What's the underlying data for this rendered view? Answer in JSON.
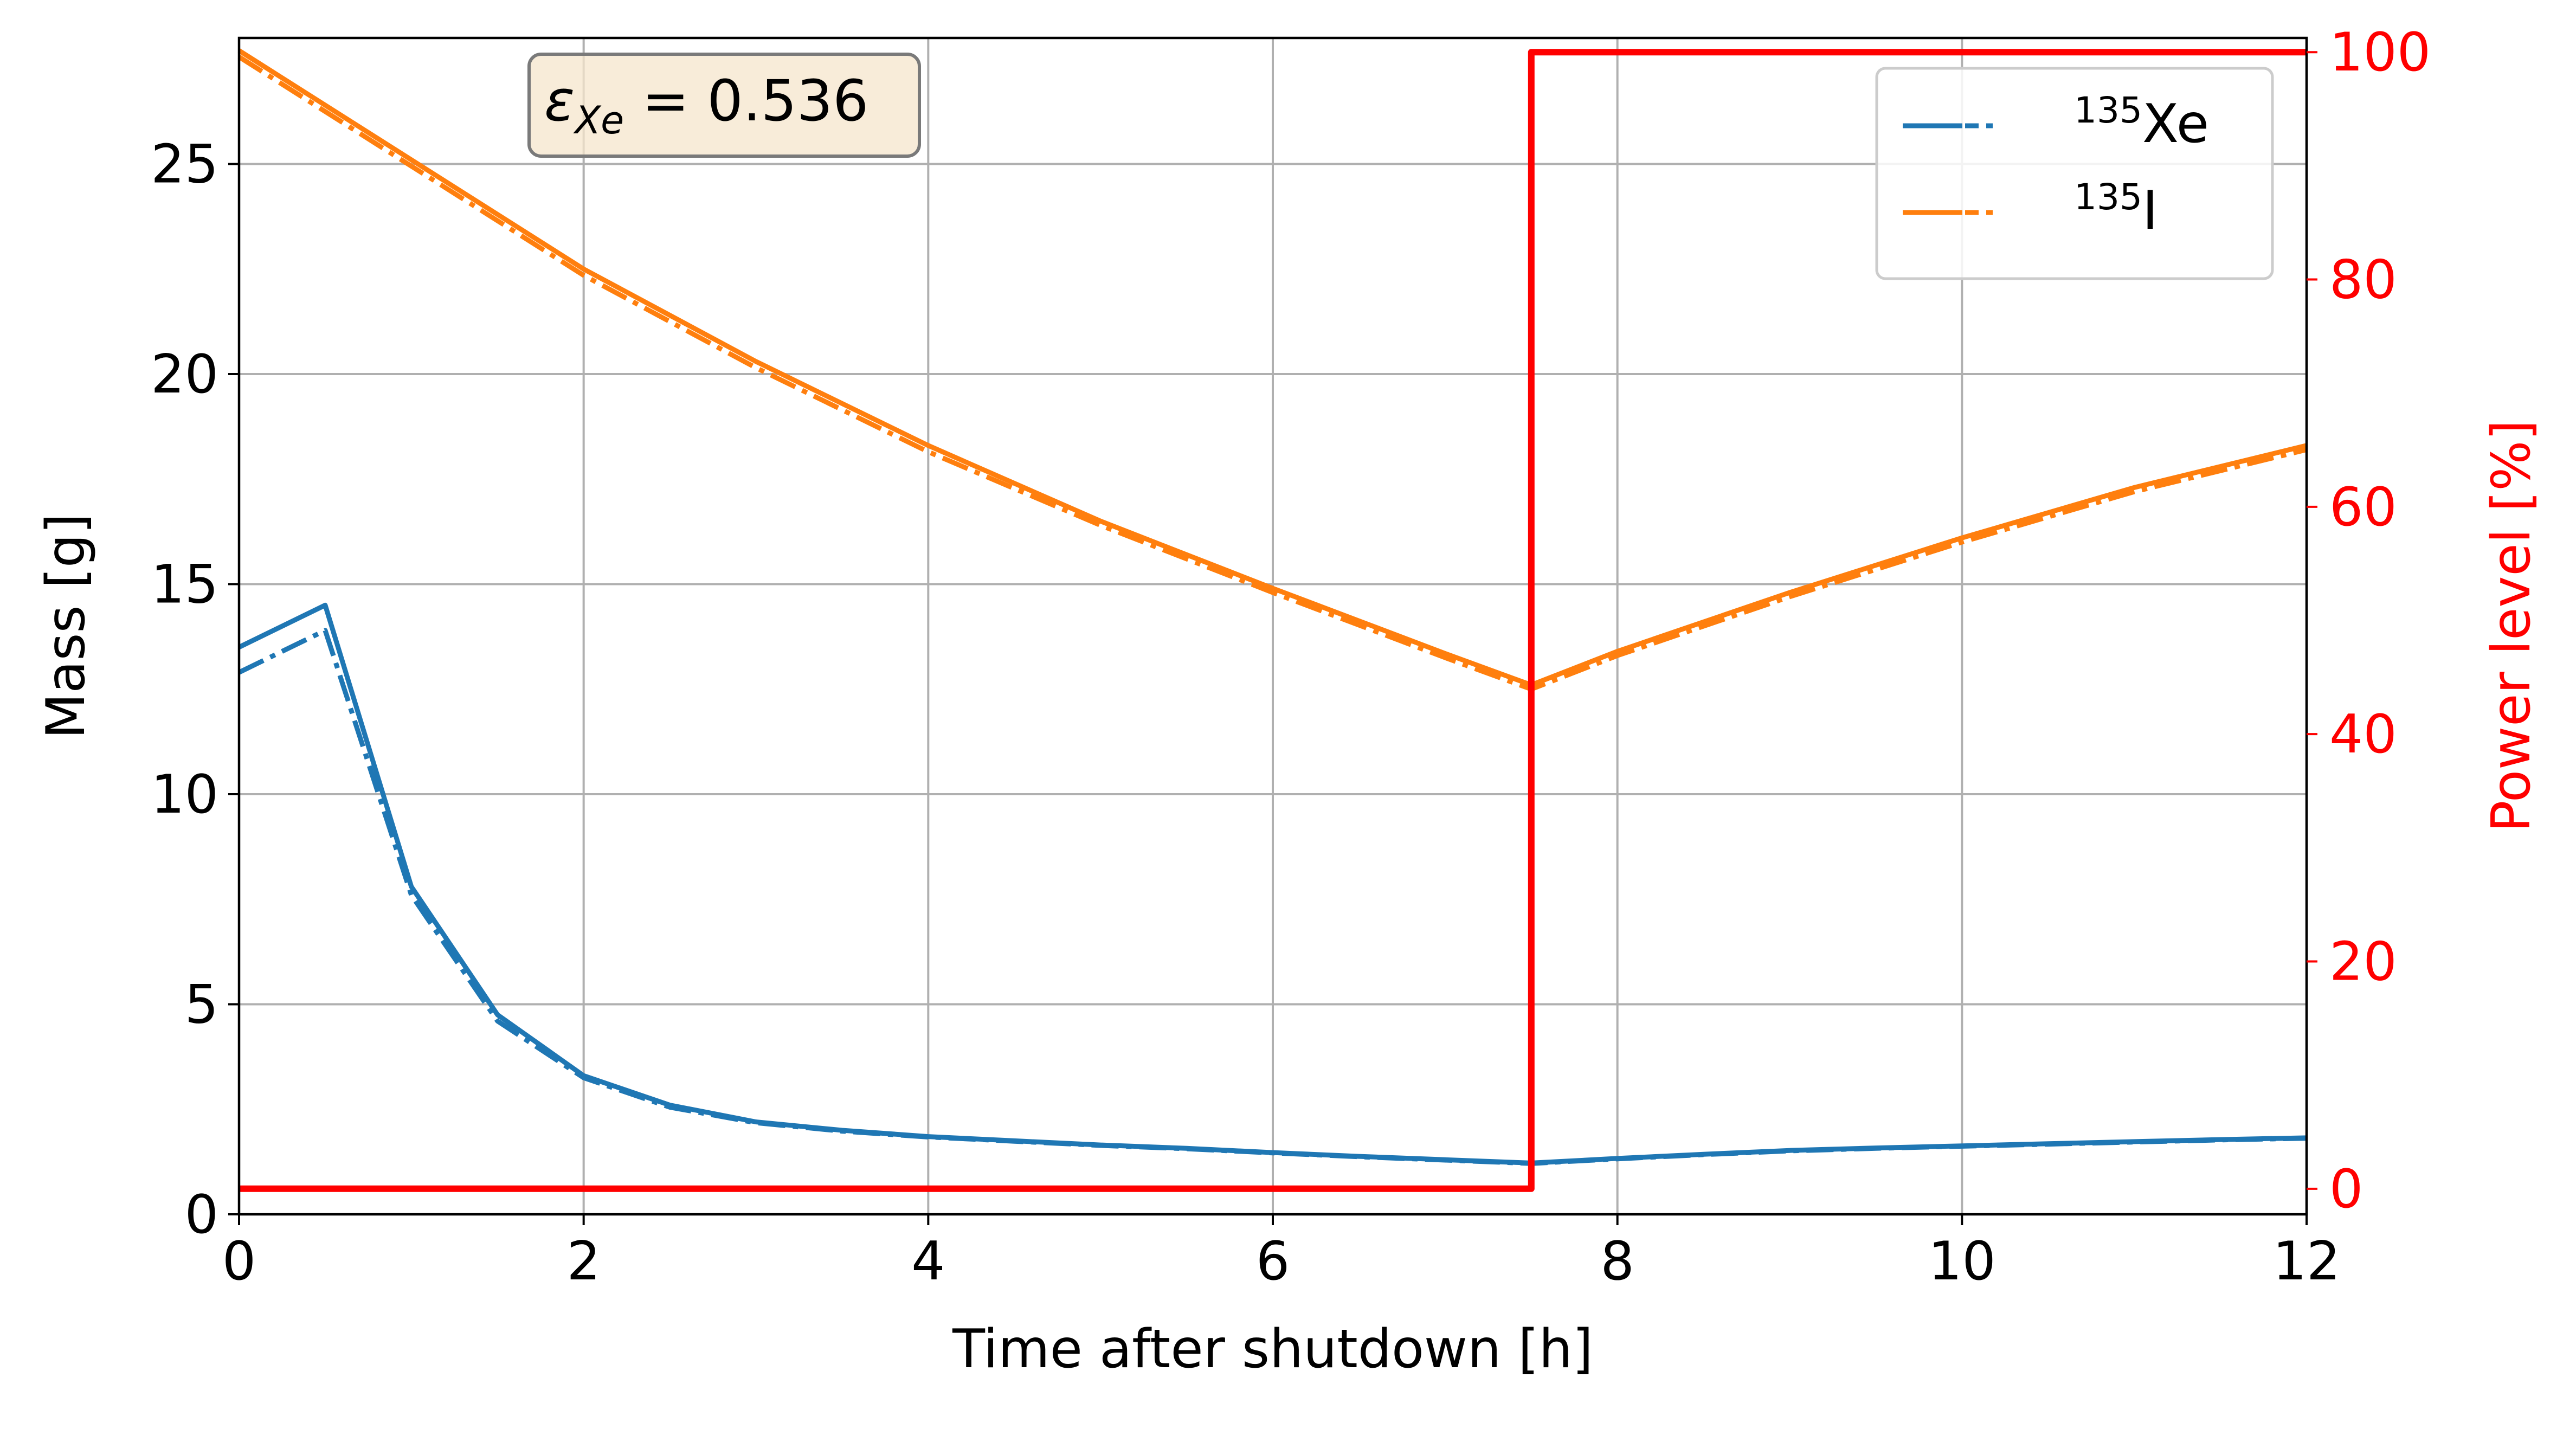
{
  "chart_data": {
    "type": "line",
    "xlabel": "Time after shutdown [h]",
    "ylabel": "Mass [g]",
    "y2label": "Power level [%]",
    "xlim": [
      0,
      12
    ],
    "ylim": [
      0,
      28
    ],
    "y2lim": [
      -2.25,
      101.25
    ],
    "xticks": [
      "0",
      "2",
      "4",
      "6",
      "8",
      "10",
      "12"
    ],
    "yticks": [
      "0",
      "5",
      "10",
      "15",
      "20",
      "25"
    ],
    "y2ticks": [
      "0",
      "20",
      "40",
      "60",
      "80",
      "100"
    ],
    "grid": true,
    "legend_position": "top-right",
    "legend": [
      {
        "label": "Xe",
        "superscript": "135",
        "color": "#1f77b4"
      },
      {
        "label": "I",
        "superscript": "135",
        "color": "#ff7f0e"
      }
    ],
    "annotation": {
      "symbol": "ε",
      "subscript": "Xe",
      "text": " = 0.536"
    },
    "series": [
      {
        "name": "135Xe",
        "axis": "left",
        "style": "solid",
        "color": "#1f77b4",
        "x": [
          0,
          0.5,
          1.0,
          1.5,
          2.0,
          2.5,
          3.0,
          3.5,
          4.0,
          4.5,
          5.0,
          5.5,
          6.0,
          6.5,
          7.0,
          7.5,
          8.0,
          8.5,
          9.0,
          9.5,
          10.0,
          10.5,
          11.0,
          11.5,
          12.0
        ],
        "y": [
          13.5,
          14.5,
          7.8,
          4.75,
          3.3,
          2.6,
          2.2,
          2.0,
          1.85,
          1.75,
          1.65,
          1.57,
          1.47,
          1.38,
          1.3,
          1.22,
          1.33,
          1.43,
          1.52,
          1.58,
          1.63,
          1.68,
          1.73,
          1.78,
          1.82
        ]
      },
      {
        "name": "135Xe",
        "axis": "left",
        "style": "dashed",
        "color": "#1f77b4",
        "x": [
          0,
          0.5,
          1.0,
          1.5,
          2.0,
          2.5,
          3.0,
          3.5,
          4.0,
          4.5,
          5.0,
          5.5,
          6.0,
          6.5,
          7.0,
          7.5,
          8.0,
          8.5,
          9.0,
          9.5,
          10.0,
          10.5,
          11.0,
          11.5,
          12.0
        ],
        "y": [
          12.9,
          13.9,
          7.6,
          4.6,
          3.25,
          2.55,
          2.18,
          1.98,
          1.84,
          1.74,
          1.64,
          1.56,
          1.46,
          1.37,
          1.29,
          1.21,
          1.32,
          1.42,
          1.51,
          1.57,
          1.62,
          1.67,
          1.72,
          1.77,
          1.81
        ]
      },
      {
        "name": "135I",
        "axis": "left",
        "style": "solid",
        "color": "#ff7f0e",
        "x": [
          0,
          1,
          2,
          3,
          4,
          5,
          6,
          7,
          7.5,
          8,
          9,
          10,
          11,
          12
        ],
        "y": [
          27.7,
          25.1,
          22.5,
          20.3,
          18.3,
          16.5,
          14.9,
          13.35,
          12.6,
          13.4,
          14.8,
          16.1,
          17.3,
          18.3
        ]
      },
      {
        "name": "135I",
        "axis": "left",
        "style": "dashed",
        "color": "#ff7f0e",
        "x": [
          0,
          1,
          2,
          3,
          4,
          5,
          6,
          7,
          7.5,
          8,
          9,
          10,
          11,
          12
        ],
        "y": [
          27.55,
          24.95,
          22.35,
          20.15,
          18.15,
          16.4,
          14.8,
          13.25,
          12.5,
          13.3,
          14.7,
          16.0,
          17.2,
          18.2
        ]
      },
      {
        "name": "Power level",
        "axis": "right",
        "style": "step",
        "color": "#ff0000",
        "x": [
          0,
          7.5,
          7.5,
          12
        ],
        "y": [
          0,
          0,
          100,
          100
        ]
      }
    ]
  }
}
